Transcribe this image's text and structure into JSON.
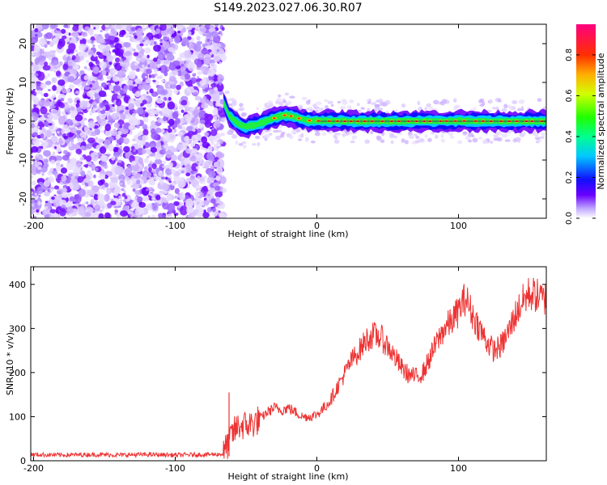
{
  "figure_title": "S149.2023.027.06.30.R07",
  "colors": {
    "snr_line": "#ee3333",
    "axis": "#000000",
    "background": "#ffffff"
  },
  "chart_data": [
    {
      "type": "heatmap",
      "name": "spectrogram",
      "title": "S149.2023.027.06.30.R07",
      "xlabel": "Height of straight line (km)",
      "ylabel": "Frequency (Hz)",
      "xlim": [
        -202,
        162
      ],
      "ylim": [
        -25,
        25
      ],
      "xticks": [
        -200,
        -100,
        0,
        100
      ],
      "xtick_labels": [
        "-200",
        "-100",
        "0",
        "100"
      ],
      "yticks": [
        -20,
        -10,
        0,
        10,
        20
      ],
      "ytick_labels": [
        "-20",
        "-10",
        "0",
        "10",
        "20"
      ],
      "noise_region_x": [
        -202,
        -66
      ],
      "signal_ridge": {
        "x": [
          -66,
          -62,
          -58,
          -54,
          -50,
          -46,
          -42,
          -38,
          -34,
          -30,
          -26,
          -22,
          -18,
          -14,
          -10,
          -6,
          -2,
          0,
          20,
          40,
          60,
          80,
          100,
          120,
          140,
          162
        ],
        "freq": [
          5,
          1.5,
          0,
          -1,
          -1.5,
          -1.2,
          -0.8,
          -0.3,
          0.3,
          0.8,
          1.3,
          1.6,
          1.3,
          0.9,
          0.5,
          0.2,
          0.1,
          0.1,
          0,
          0,
          0,
          0,
          0.1,
          0,
          0,
          0
        ]
      },
      "colorbar": {
        "label": "Normalized spectral amplitude",
        "range": [
          0,
          0.95
        ],
        "ticks": [
          0.0,
          0.2,
          0.4,
          0.6,
          0.8
        ],
        "tick_labels": [
          "0.0",
          "0.2",
          "0.4",
          "0.6",
          "0.8"
        ]
      }
    },
    {
      "type": "line",
      "name": "snr",
      "xlabel": "Height of straight line (km)",
      "ylabel": "SNR (10 * v/v)",
      "xlim": [
        -202,
        162
      ],
      "ylim": [
        0,
        440
      ],
      "xticks": [
        -200,
        -100,
        0,
        100
      ],
      "xtick_labels": [
        "-200",
        "-100",
        "0",
        "100"
      ],
      "yticks": [
        0,
        100,
        200,
        300,
        400
      ],
      "ytick_labels": [
        "0",
        "100",
        "200",
        "300",
        "400"
      ],
      "series": [
        {
          "name": "SNR",
          "x": [
            -202,
            -180,
            -160,
            -140,
            -120,
            -100,
            -80,
            -66,
            -60,
            -55,
            -50,
            -45,
            -40,
            -35,
            -30,
            -25,
            -20,
            -15,
            -10,
            -5,
            0,
            5,
            10,
            15,
            20,
            25,
            30,
            35,
            40,
            45,
            50,
            55,
            60,
            65,
            70,
            75,
            80,
            85,
            90,
            95,
            100,
            105,
            110,
            115,
            120,
            125,
            130,
            135,
            140,
            145,
            150,
            155,
            160,
            162
          ],
          "values": [
            14,
            13,
            14,
            13,
            14,
            13,
            14,
            15,
            60,
            80,
            80,
            85,
            95,
            110,
            120,
            115,
            120,
            110,
            100,
            100,
            105,
            120,
            140,
            170,
            200,
            230,
            250,
            275,
            285,
            280,
            260,
            235,
            210,
            195,
            190,
            200,
            235,
            270,
            300,
            315,
            340,
            370,
            330,
            300,
            270,
            250,
            260,
            290,
            330,
            360,
            380,
            375,
            365,
            370
          ]
        }
      ]
    }
  ]
}
